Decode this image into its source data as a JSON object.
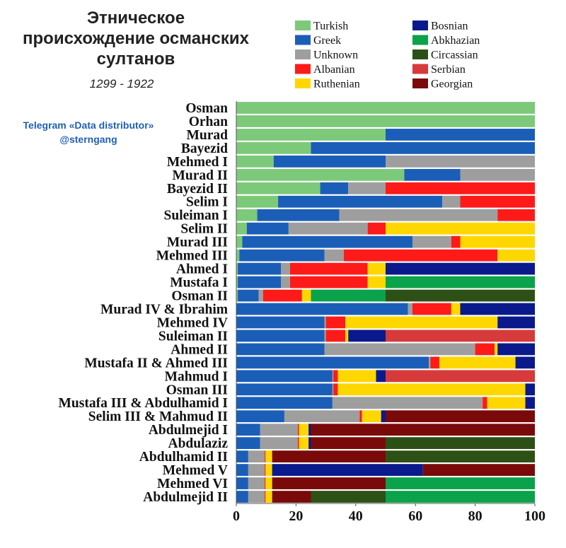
{
  "title_lines": [
    "Этническое",
    "происхождение османских",
    "султанов"
  ],
  "subtitle": "1299 - 1922",
  "credit_lines": [
    "Telegram «Data distributor»",
    "@sterngang"
  ],
  "colors": {
    "Turkish": "#7dc97a",
    "Greek": "#1b5eb8",
    "Unknown": "#9e9e9e",
    "Albanian": "#ff1a1a",
    "Ruthenian": "#ffd700",
    "Bosnian": "#0a1a8c",
    "Abkhazian": "#0aa24a",
    "Circassian": "#2d5016",
    "Serbian": "#d63a3a",
    "Georgian": "#7a0a0a"
  },
  "chart_data": {
    "type": "bar",
    "orientation": "horizontal",
    "stacked": true,
    "xlim": [
      0,
      100
    ],
    "xticks": [
      "0",
      "20",
      "40",
      "60",
      "80",
      "100"
    ],
    "legend": {
      "placement": "top-right",
      "columns": [
        [
          "Turkish",
          "Greek",
          "Unknown",
          "Albanian",
          "Ruthenian"
        ],
        [
          "Bosnian",
          "Abkhazian",
          "Circassian",
          "Serbian",
          "Georgian"
        ]
      ]
    },
    "rows": [
      {
        "label": "Osman",
        "segments": [
          [
            "Turkish",
            100
          ]
        ]
      },
      {
        "label": "Orhan",
        "segments": [
          [
            "Turkish",
            100
          ]
        ]
      },
      {
        "label": "Murad",
        "segments": [
          [
            "Turkish",
            50
          ],
          [
            "Greek",
            50
          ]
        ]
      },
      {
        "label": "Bayezid",
        "segments": [
          [
            "Turkish",
            25
          ],
          [
            "Greek",
            75
          ]
        ]
      },
      {
        "label": "Mehmed I",
        "segments": [
          [
            "Turkish",
            12.5
          ],
          [
            "Greek",
            37.5
          ],
          [
            "Unknown",
            50
          ]
        ]
      },
      {
        "label": "Murad II",
        "segments": [
          [
            "Turkish",
            56.25
          ],
          [
            "Greek",
            18.75
          ],
          [
            "Unknown",
            25
          ]
        ]
      },
      {
        "label": "Bayezid II",
        "segments": [
          [
            "Turkish",
            28.1
          ],
          [
            "Greek",
            9.4
          ],
          [
            "Unknown",
            12.5
          ],
          [
            "Albanian",
            50
          ]
        ]
      },
      {
        "label": "Selim I",
        "segments": [
          [
            "Turkish",
            14
          ],
          [
            "Greek",
            55
          ],
          [
            "Unknown",
            6
          ],
          [
            "Albanian",
            25
          ]
        ]
      },
      {
        "label": "Suleiman I",
        "segments": [
          [
            "Turkish",
            7
          ],
          [
            "Greek",
            27.5
          ],
          [
            "Unknown",
            53
          ],
          [
            "Albanian",
            12.5
          ]
        ]
      },
      {
        "label": "Selim II",
        "segments": [
          [
            "Turkish",
            3.5
          ],
          [
            "Greek",
            14
          ],
          [
            "Unknown",
            26.5
          ],
          [
            "Albanian",
            6
          ],
          [
            "Ruthenian",
            50
          ]
        ]
      },
      {
        "label": "Murad III",
        "segments": [
          [
            "Turkish",
            2
          ],
          [
            "Greek",
            57
          ],
          [
            "Unknown",
            13
          ],
          [
            "Albanian",
            3
          ],
          [
            "Ruthenian",
            25
          ]
        ]
      },
      {
        "label": "Mehmed III",
        "segments": [
          [
            "Turkish",
            1
          ],
          [
            "Greek",
            28.5
          ],
          [
            "Unknown",
            6.5
          ],
          [
            "Albanian",
            51.5
          ],
          [
            "Ruthenian",
            12.5
          ]
        ]
      },
      {
        "label": "Ahmed I",
        "segments": [
          [
            "Turkish",
            0.5
          ],
          [
            "Greek",
            14.5
          ],
          [
            "Unknown",
            3
          ],
          [
            "Albanian",
            26
          ],
          [
            "Ruthenian",
            6
          ],
          [
            "Bosnian",
            50
          ]
        ]
      },
      {
        "label": "Mustafa I",
        "segments": [
          [
            "Turkish",
            0.5
          ],
          [
            "Greek",
            14.5
          ],
          [
            "Unknown",
            3
          ],
          [
            "Albanian",
            26
          ],
          [
            "Ruthenian",
            6
          ],
          [
            "Abkhazian",
            50
          ]
        ]
      },
      {
        "label": "Osman II",
        "segments": [
          [
            "Turkish",
            0.5
          ],
          [
            "Greek",
            7
          ],
          [
            "Unknown",
            1.5
          ],
          [
            "Albanian",
            13
          ],
          [
            "Ruthenian",
            3
          ],
          [
            "Abkhazian",
            25
          ],
          [
            "Circassian",
            50
          ]
        ]
      },
      {
        "label": "Murad IV & Ibrahim",
        "segments": [
          [
            "Greek",
            57.5
          ],
          [
            "Unknown",
            1.5
          ],
          [
            "Albanian",
            13
          ],
          [
            "Ruthenian",
            3
          ],
          [
            "Bosnian",
            25
          ]
        ]
      },
      {
        "label": "Mehmed IV",
        "segments": [
          [
            "Greek",
            29.5
          ],
          [
            "Unknown",
            0.5
          ],
          [
            "Albanian",
            6.5
          ],
          [
            "Ruthenian",
            51
          ],
          [
            "Bosnian",
            12.5
          ]
        ]
      },
      {
        "label": "Suleiman II",
        "segments": [
          [
            "Greek",
            29.5
          ],
          [
            "Unknown",
            0.5
          ],
          [
            "Albanian",
            6.5
          ],
          [
            "Ruthenian",
            1
          ],
          [
            "Bosnian",
            12.5
          ],
          [
            "Serbian",
            50
          ]
        ]
      },
      {
        "label": "Ahmed II",
        "segments": [
          [
            "Greek",
            29.5
          ],
          [
            "Unknown",
            50.5
          ],
          [
            "Albanian",
            6.5
          ],
          [
            "Ruthenian",
            1
          ],
          [
            "Bosnian",
            12.5
          ]
        ]
      },
      {
        "label": "Mustafa II & Ahmed III",
        "segments": [
          [
            "Greek",
            64.5
          ],
          [
            "Unknown",
            0.5
          ],
          [
            "Albanian",
            3
          ],
          [
            "Ruthenian",
            25.5
          ],
          [
            "Bosnian",
            6.5
          ]
        ]
      },
      {
        "label": "Mahmud I",
        "segments": [
          [
            "Greek",
            32.2
          ],
          [
            "Unknown",
            0.3
          ],
          [
            "Albanian",
            1.5
          ],
          [
            "Ruthenian",
            12.8
          ],
          [
            "Bosnian",
            3.2
          ],
          [
            "Serbian",
            50
          ]
        ]
      },
      {
        "label": "Osman III",
        "segments": [
          [
            "Greek",
            32.2
          ],
          [
            "Unknown",
            0.3
          ],
          [
            "Albanian",
            1.5
          ],
          [
            "Ruthenian",
            62.8
          ],
          [
            "Bosnian",
            3.2
          ]
        ]
      },
      {
        "label": "Mustafa III & Abdulhamid I",
        "segments": [
          [
            "Greek",
            32.2
          ],
          [
            "Unknown",
            50.3
          ],
          [
            "Albanian",
            1.5
          ],
          [
            "Ruthenian",
            12.8
          ],
          [
            "Bosnian",
            3.2
          ]
        ]
      },
      {
        "label": "Selim III & Mahmud II",
        "segments": [
          [
            "Greek",
            16.1
          ],
          [
            "Unknown",
            25.2
          ],
          [
            "Albanian",
            0.8
          ],
          [
            "Ruthenian",
            6.4
          ],
          [
            "Bosnian",
            1.5
          ],
          [
            "Georgian",
            50
          ]
        ]
      },
      {
        "label": "Abdulmejid I",
        "segments": [
          [
            "Greek",
            8
          ],
          [
            "Unknown",
            12.6
          ],
          [
            "Albanian",
            0.4
          ],
          [
            "Ruthenian",
            3.2
          ],
          [
            "Bosnian",
            0.8
          ],
          [
            "Georgian",
            75
          ]
        ]
      },
      {
        "label": "Abdulaziz",
        "segments": [
          [
            "Greek",
            8
          ],
          [
            "Unknown",
            12.6
          ],
          [
            "Albanian",
            0.4
          ],
          [
            "Ruthenian",
            3.2
          ],
          [
            "Bosnian",
            0.8
          ],
          [
            "Georgian",
            25
          ],
          [
            "Circassian",
            50
          ]
        ]
      },
      {
        "label": "Abdulhamid II",
        "segments": [
          [
            "Greek",
            4
          ],
          [
            "Unknown",
            5.5
          ],
          [
            "Albanian",
            0.3
          ],
          [
            "Ruthenian",
            2.2
          ],
          [
            "Georgian",
            38
          ],
          [
            "Circassian",
            50
          ]
        ]
      },
      {
        "label": "Mehmed V",
        "segments": [
          [
            "Greek",
            4
          ],
          [
            "Unknown",
            5.5
          ],
          [
            "Albanian",
            0.3
          ],
          [
            "Ruthenian",
            2.2
          ],
          [
            "Bosnian",
            50.5
          ],
          [
            "Georgian",
            37.5
          ]
        ]
      },
      {
        "label": "Mehmed VI",
        "segments": [
          [
            "Greek",
            4
          ],
          [
            "Unknown",
            5.5
          ],
          [
            "Albanian",
            0.3
          ],
          [
            "Ruthenian",
            2.2
          ],
          [
            "Georgian",
            38
          ],
          [
            "Abkhazian",
            50
          ]
        ]
      },
      {
        "label": "Abdulmejid II",
        "segments": [
          [
            "Greek",
            4
          ],
          [
            "Unknown",
            5.5
          ],
          [
            "Albanian",
            0.3
          ],
          [
            "Ruthenian",
            2.2
          ],
          [
            "Georgian",
            13
          ],
          [
            "Circassian",
            25
          ],
          [
            "Abkhazian",
            50
          ]
        ]
      }
    ]
  }
}
